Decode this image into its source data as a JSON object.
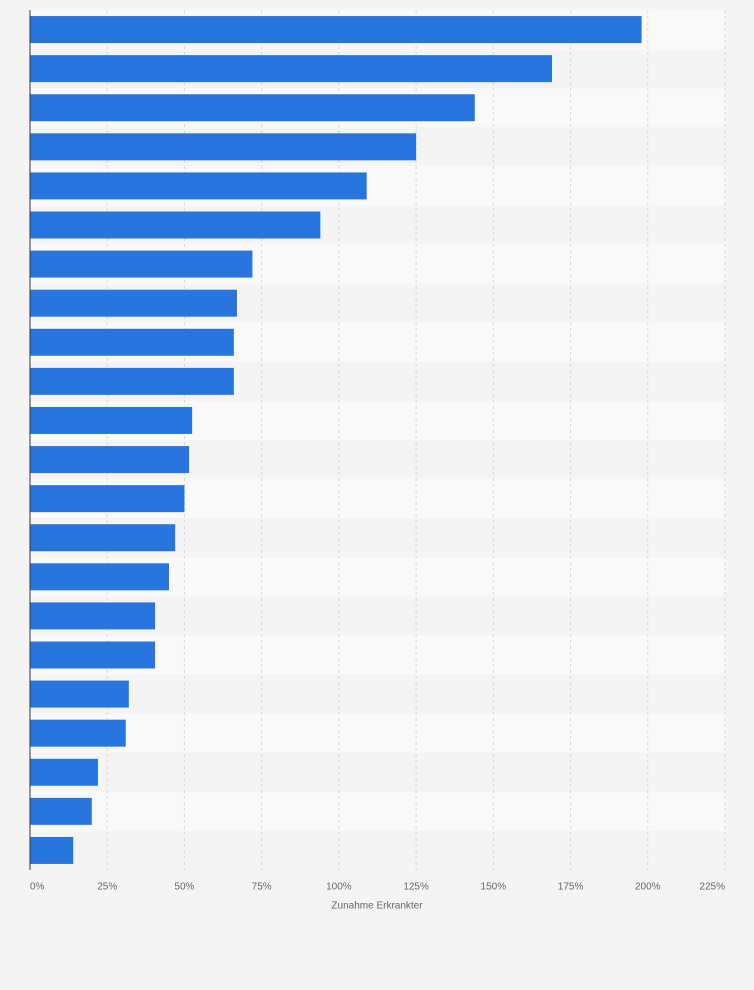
{
  "chart_data": {
    "type": "bar",
    "orientation": "horizontal",
    "categories": [
      null,
      null,
      null,
      null,
      null,
      null,
      null,
      null,
      null,
      null,
      null,
      null,
      null,
      null,
      null,
      null,
      null,
      null,
      null,
      null,
      null,
      null
    ],
    "values": [
      198,
      169,
      144,
      125,
      109,
      94,
      72,
      67,
      66,
      66,
      52.5,
      51.5,
      50,
      47,
      45,
      40.5,
      40.5,
      32,
      31,
      22,
      20,
      14
    ],
    "color": "#2876dd",
    "xlim": [
      0,
      225
    ],
    "xticks": [
      {
        "value": 0,
        "label": "0%"
      },
      {
        "value": 25,
        "label": "25%"
      },
      {
        "value": 50,
        "label": "50%"
      },
      {
        "value": 75,
        "label": "75%"
      },
      {
        "value": 100,
        "label": "100%"
      },
      {
        "value": 125,
        "label": "125%"
      },
      {
        "value": 150,
        "label": "150%"
      },
      {
        "value": 175,
        "label": "175%"
      },
      {
        "value": 200,
        "label": "200%"
      },
      {
        "value": 225,
        "label": "225%"
      }
    ],
    "xlabel": "Zunahme Erkrankter",
    "grid": true
  }
}
